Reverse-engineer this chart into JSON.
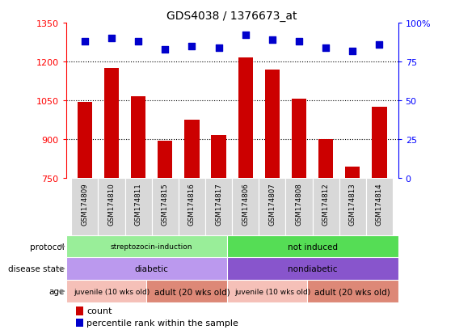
{
  "title": "GDS4038 / 1376673_at",
  "samples": [
    "GSM174809",
    "GSM174810",
    "GSM174811",
    "GSM174815",
    "GSM174816",
    "GSM174817",
    "GSM174806",
    "GSM174807",
    "GSM174808",
    "GSM174812",
    "GSM174813",
    "GSM174814"
  ],
  "counts": [
    1045,
    1175,
    1065,
    895,
    975,
    915,
    1215,
    1170,
    1055,
    900,
    795,
    1025
  ],
  "percentile_ranks": [
    88,
    90,
    88,
    83,
    85,
    84,
    92,
    89,
    88,
    84,
    82,
    86
  ],
  "ylim_left": [
    750,
    1350
  ],
  "ylim_right": [
    0,
    100
  ],
  "yticks_left": [
    750,
    900,
    1050,
    1200,
    1350
  ],
  "yticks_right": [
    0,
    25,
    50,
    75,
    100
  ],
  "bar_color": "#cc0000",
  "dot_color": "#0000cc",
  "protocol_groups": [
    {
      "label": "streptozocin-induction",
      "start": 0,
      "end": 6,
      "color": "#99ee99"
    },
    {
      "label": "not induced",
      "start": 6,
      "end": 12,
      "color": "#55dd55"
    }
  ],
  "disease_groups": [
    {
      "label": "diabetic",
      "start": 0,
      "end": 6,
      "color": "#bb99ee"
    },
    {
      "label": "nondiabetic",
      "start": 6,
      "end": 12,
      "color": "#8855cc"
    }
  ],
  "age_groups": [
    {
      "label": "juvenile (10 wks old)",
      "start": 0,
      "end": 3,
      "color": "#f5c0b8"
    },
    {
      "label": "adult (20 wks old)",
      "start": 3,
      "end": 6,
      "color": "#dd8877"
    },
    {
      "label": "juvenile (10 wks old)",
      "start": 6,
      "end": 9,
      "color": "#f5c0b8"
    },
    {
      "label": "adult (20 wks old)",
      "start": 9,
      "end": 12,
      "color": "#dd8877"
    }
  ],
  "row_labels": [
    "protocol",
    "disease state",
    "age"
  ],
  "legend_count_label": "count",
  "legend_pct_label": "percentile rank within the sample",
  "xtick_bg_color": "#d8d8d8",
  "gridline_yticks": [
    900,
    1050,
    1200
  ]
}
